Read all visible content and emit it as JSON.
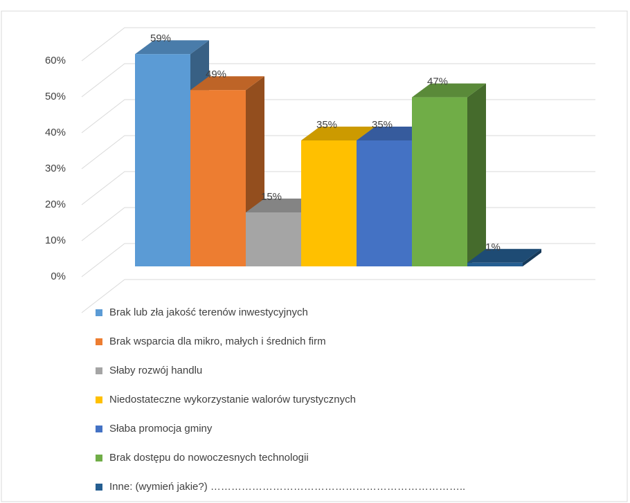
{
  "chart_data": {
    "type": "bar3d",
    "categories": [
      "Brak lub zła jakość terenów inwestycyjnych",
      "Brak wsparcia dla mikro, małych i średnich firm",
      "Słaby rozwój handlu",
      "Niedostateczne wykorzystanie walorów turystycznych",
      "Słaba promocja gminy",
      "Brak dostępu do nowoczesnych technologii",
      "Inne: (wymień jakie?) ……………………………………………………………….."
    ],
    "values": [
      59,
      49,
      15,
      35,
      35,
      47,
      1
    ],
    "value_labels": [
      "59%",
      "49%",
      "15%",
      "35%",
      "35%",
      "47%",
      "1%"
    ],
    "colors": [
      "#5b9bd5",
      "#ed7d31",
      "#a5a5a5",
      "#ffc000",
      "#4472c4",
      "#70ad47",
      "#255e91"
    ],
    "ylim": [
      0,
      70
    ],
    "yticks": [
      {
        "value": 0,
        "label": "0%"
      },
      {
        "value": 10,
        "label": "10%"
      },
      {
        "value": 20,
        "label": "20%"
      },
      {
        "value": 30,
        "label": "30%"
      },
      {
        "value": 40,
        "label": "40%"
      },
      {
        "value": 50,
        "label": "50%"
      },
      {
        "value": 60,
        "label": "60%"
      }
    ],
    "grid": true
  }
}
